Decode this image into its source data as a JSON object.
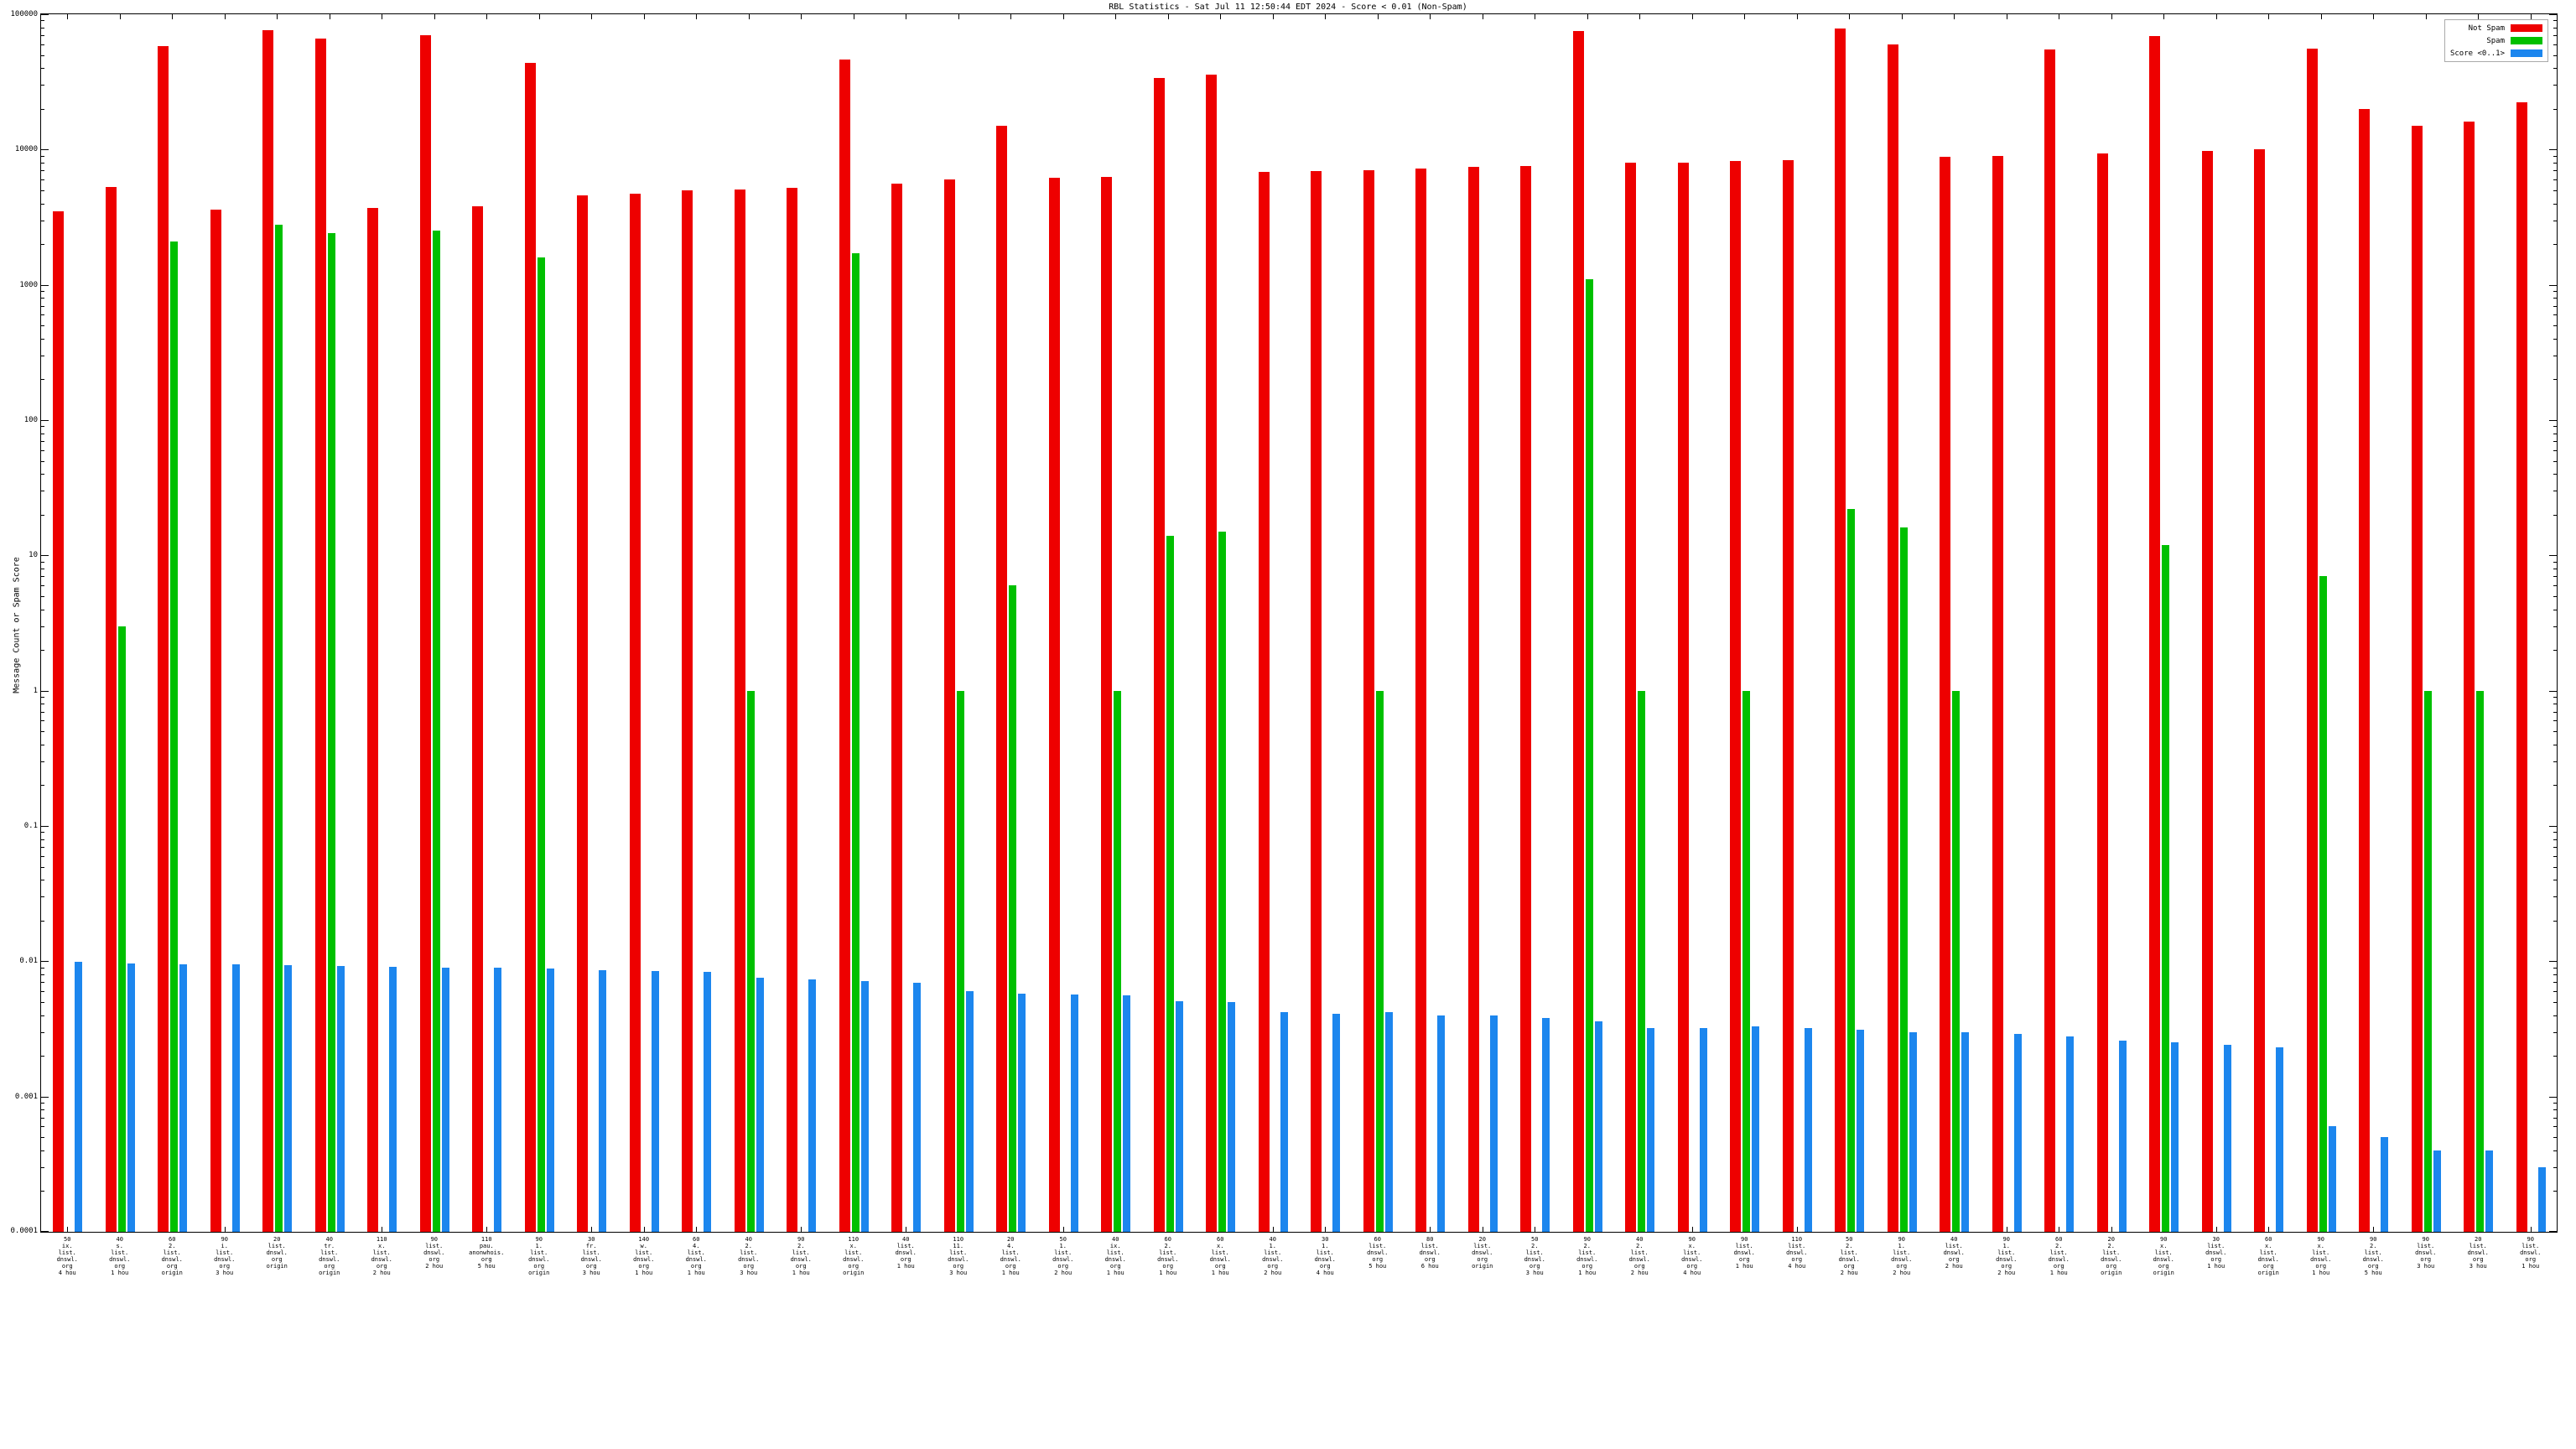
{
  "title": "RBL Statistics - Sat Jul 11 12:50:44 EDT 2024 - Score < 0.01 (Non-Spam)",
  "y_axis_label": "Message Count or Spam Score",
  "legend": {
    "not_spam": "Not Spam",
    "spam": "Spam",
    "score": "Score <0..1>"
  },
  "colors": {
    "not_spam": "#ee0000",
    "spam": "#00c000",
    "score": "#1c86ee"
  },
  "chart_data": {
    "type": "bar",
    "scale": "log",
    "ylim": [
      0.0001,
      100000
    ],
    "ytick_labels": [
      "100000",
      "10000",
      "1000",
      "100",
      "10",
      "1",
      "0.1",
      "0.01",
      "0.001",
      "0.0001"
    ],
    "grid": false,
    "legend_position": "top-right",
    "categories": [
      [
        "50",
        "ix.",
        "list.",
        "dnswl.",
        "org",
        "4 hou"
      ],
      [
        "40",
        "s.",
        "list.",
        "dnswl.",
        "org",
        "1 hou"
      ],
      [
        "60",
        "2.",
        "list.",
        "dnswl.",
        "org",
        "origin"
      ],
      [
        "90",
        "i.",
        "list.",
        "dnswl.",
        "org",
        "3 hou"
      ],
      [
        "20",
        "list.",
        "dnswl.",
        "org",
        "origin"
      ],
      [
        "40",
        "tr.",
        "list.",
        "dnswl.",
        "org",
        "origin"
      ],
      [
        "110",
        "x.",
        "list.",
        "dnswl.",
        "org",
        "2 hou"
      ],
      [
        "90",
        "list.",
        "dnswl.",
        "org",
        "2 hou"
      ],
      [
        "110",
        "pau.",
        "anonwhois.",
        "org",
        "5 hou"
      ],
      [
        "90",
        "1.",
        "list.",
        "dnswl.",
        "org",
        "origin"
      ],
      [
        "30",
        "fr.",
        "list.",
        "dnswl.",
        "org",
        "3 hou"
      ],
      [
        "140",
        "w.",
        "list.",
        "dnswl.",
        "org",
        "1 hou"
      ],
      [
        "60",
        "4.",
        "list.",
        "dnswl.",
        "org",
        "1 hou"
      ],
      [
        "40",
        "2.",
        "list.",
        "dnswl.",
        "org",
        "3 hou"
      ],
      [
        "90",
        "2.",
        "list.",
        "dnswl.",
        "org",
        "1 hou"
      ],
      [
        "110",
        "x.",
        "list.",
        "dnswl.",
        "org",
        "origin"
      ],
      [
        "40",
        "list.",
        "dnswl.",
        "org",
        "1 hou"
      ],
      [
        "110",
        "11.",
        "list.",
        "dnswl.",
        "org",
        "3 hou"
      ],
      [
        "20",
        "4.",
        "list.",
        "dnswl.",
        "org",
        "1 hou"
      ],
      [
        "50",
        "1.",
        "list.",
        "dnswl.",
        "org",
        "2 hou"
      ],
      [
        "40",
        "ix.",
        "list.",
        "dnswl.",
        "org",
        "1 hou"
      ],
      [
        "60",
        "2.",
        "list.",
        "dnswl.",
        "org",
        "1 hou"
      ],
      [
        "60",
        "x.",
        "list.",
        "dnswl.",
        "org",
        "1 hou"
      ],
      [
        "40",
        "1.",
        "list.",
        "dnswl.",
        "org",
        "2 hou"
      ],
      [
        "30",
        "1.",
        "list.",
        "dnswl.",
        "org",
        "4 hou"
      ],
      [
        "60",
        "list.",
        "dnswl.",
        "org",
        "5 hou"
      ],
      [
        "80",
        "list.",
        "dnswl.",
        "org",
        "6 hou"
      ],
      [
        "20",
        "list.",
        "dnswl.",
        "org",
        "origin"
      ],
      [
        "50",
        "2.",
        "list.",
        "dnswl.",
        "org",
        "3 hou"
      ],
      [
        "90",
        "2.",
        "list.",
        "dnswl.",
        "org",
        "1 hou"
      ],
      [
        "40",
        "2.",
        "list.",
        "dnswl.",
        "org",
        "2 hou"
      ],
      [
        "90",
        "x.",
        "list.",
        "dnswl.",
        "org",
        "4 hou"
      ],
      [
        "90",
        "list.",
        "dnswl.",
        "org",
        "1 hou"
      ],
      [
        "110",
        "list.",
        "dnswl.",
        "org",
        "4 hou"
      ],
      [
        "50",
        "2.",
        "list.",
        "dnswl.",
        "org",
        "2 hou"
      ],
      [
        "90",
        "1.",
        "list.",
        "dnswl.",
        "org",
        "2 hou"
      ],
      [
        "40",
        "list.",
        "dnswl.",
        "org",
        "2 hou"
      ],
      [
        "90",
        "1.",
        "list.",
        "dnswl.",
        "org",
        "2 hou"
      ],
      [
        "60",
        "2.",
        "list.",
        "dnswl.",
        "org",
        "1 hou"
      ],
      [
        "20",
        "2.",
        "list.",
        "dnswl.",
        "org",
        "origin"
      ],
      [
        "90",
        "x.",
        "list.",
        "dnswl.",
        "org",
        "origin"
      ],
      [
        "30",
        "list.",
        "dnswl.",
        "org",
        "1 hou"
      ],
      [
        "60",
        "x.",
        "list.",
        "dnswl.",
        "org",
        "origin"
      ],
      [
        "90",
        "x.",
        "list.",
        "dnswl.",
        "org",
        "1 hou"
      ],
      [
        "90",
        "2.",
        "list.",
        "dnswl.",
        "org",
        "5 hou"
      ],
      [
        "90",
        "list.",
        "dnswl.",
        "org",
        "3 hou"
      ],
      [
        "20",
        "list.",
        "dnswl.",
        "org",
        "3 hou"
      ],
      [
        "90",
        "list.",
        "dnswl.",
        "org",
        "1 hou"
      ]
    ],
    "series": [
      {
        "name": "Not Spam",
        "color": "#ee0000",
        "values": [
          3500,
          5300,
          58000,
          3600,
          76000,
          66000,
          3700,
          70000,
          3800,
          44000,
          4600,
          4700,
          5000,
          5100,
          5200,
          46000,
          5600,
          6000,
          15000,
          6200,
          6300,
          34000,
          36000,
          6800,
          6900,
          7000,
          7200,
          7400,
          7600,
          75000,
          8000,
          8000,
          8200,
          8400,
          78000,
          60000,
          8800,
          9000,
          55000,
          9400,
          69000,
          9800,
          10000,
          56000,
          20000,
          15000,
          16000,
          22500
        ]
      },
      {
        "name": "Spam",
        "color": "#00c000",
        "values": [
          null,
          3,
          2100,
          null,
          2800,
          2400,
          null,
          2500,
          null,
          1600,
          null,
          null,
          null,
          1,
          null,
          1700,
          null,
          1,
          6,
          null,
          1,
          14,
          15,
          null,
          null,
          1,
          null,
          null,
          null,
          1100,
          1,
          null,
          1,
          null,
          22,
          16,
          1,
          null,
          null,
          null,
          12,
          null,
          null,
          7,
          null,
          1,
          1,
          null
        ]
      },
      {
        "name": "Score <0..1>",
        "color": "#1c86ee",
        "values": [
          0.0099,
          0.0096,
          0.0095,
          0.0095,
          0.0094,
          0.0092,
          0.0091,
          0.009,
          0.0089,
          0.0088,
          0.0086,
          0.0085,
          0.0083,
          0.0075,
          0.0073,
          0.0071,
          0.0069,
          0.006,
          0.0058,
          0.0057,
          0.0056,
          0.0051,
          0.005,
          0.0042,
          0.0041,
          0.0042,
          0.004,
          0.004,
          0.0038,
          0.0036,
          0.0032,
          0.0032,
          0.0033,
          0.0032,
          0.0031,
          0.003,
          0.003,
          0.0029,
          0.0028,
          0.0026,
          0.0025,
          0.0024,
          0.0023,
          0.0006,
          0.0005,
          0.0004,
          0.0004,
          0.0003
        ]
      }
    ]
  }
}
